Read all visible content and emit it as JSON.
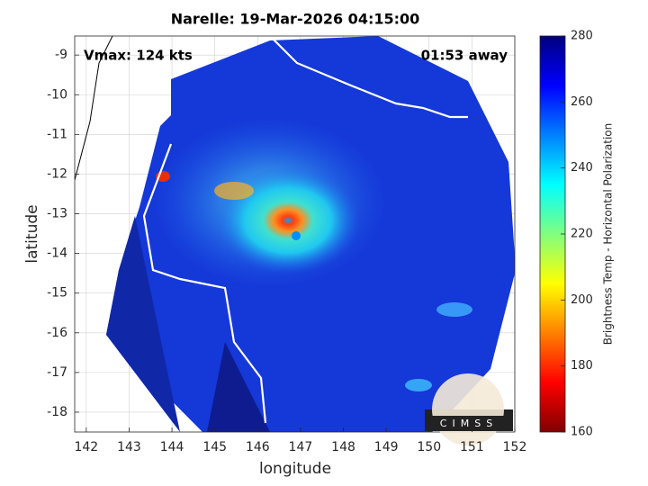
{
  "chart_data": {
    "type": "map",
    "title": "Narelle: 19-Mar-2026 04:15:00",
    "annotations": [
      "Vmax: 124 kts",
      "01:53 away"
    ],
    "x_label": "longitude",
    "y_label": "latitude",
    "xlim": [
      141.73,
      152
    ],
    "xticks": [
      142,
      143,
      144,
      145,
      146,
      147,
      148,
      149,
      150,
      151,
      152
    ],
    "ylim": [
      -18.5,
      -8.52
    ],
    "yticks": [
      -9,
      -10,
      -11,
      -12,
      -13,
      -14,
      -15,
      -16,
      -17,
      -18
    ],
    "grid": true,
    "colorbar": {
      "label": "Brightness Temp - Horizontal Polarization",
      "lim": [
        160,
        280
      ],
      "ticks": [
        160,
        180,
        200,
        220,
        240,
        260,
        280
      ],
      "colormap": "jet"
    },
    "logo": "CIMSS"
  }
}
